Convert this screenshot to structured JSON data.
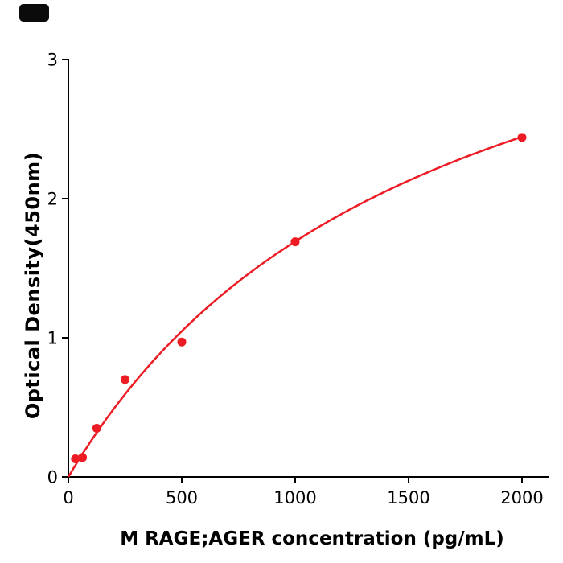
{
  "figure": {
    "background_color": "#ffffff",
    "corner_mark": {
      "shape": "rounded-rectangle",
      "color": "#0b0b0b"
    }
  },
  "chart_data": {
    "type": "scatter",
    "title": "",
    "xlabel": "M  RAGE;AGER concentration (pg/mL)",
    "ylabel": "Optical Density(450nm)",
    "x_ticks": [
      0,
      500,
      1000,
      1500,
      2000
    ],
    "y_ticks": [
      0,
      1,
      2,
      3
    ],
    "xlim": [
      0,
      2115
    ],
    "ylim": [
      0,
      3
    ],
    "grid": false,
    "legend": null,
    "axis_color": "#000000",
    "point_color": "#ed1c24",
    "curve_color": "#ed1c24",
    "points": [
      {
        "x": 31.25,
        "y": 0.13
      },
      {
        "x": 62.5,
        "y": 0.14
      },
      {
        "x": 125,
        "y": 0.35
      },
      {
        "x": 250,
        "y": 0.7
      },
      {
        "x": 500,
        "y": 0.97
      },
      {
        "x": 1000,
        "y": 1.69
      },
      {
        "x": 2000,
        "y": 2.44
      }
    ],
    "fit_curve": {
      "model": "saturation",
      "formula": "OD = vmax * x / (k + x)",
      "params": {
        "vmax": 4.4,
        "k": 1600
      },
      "x_range": [
        0,
        2000
      ]
    }
  }
}
